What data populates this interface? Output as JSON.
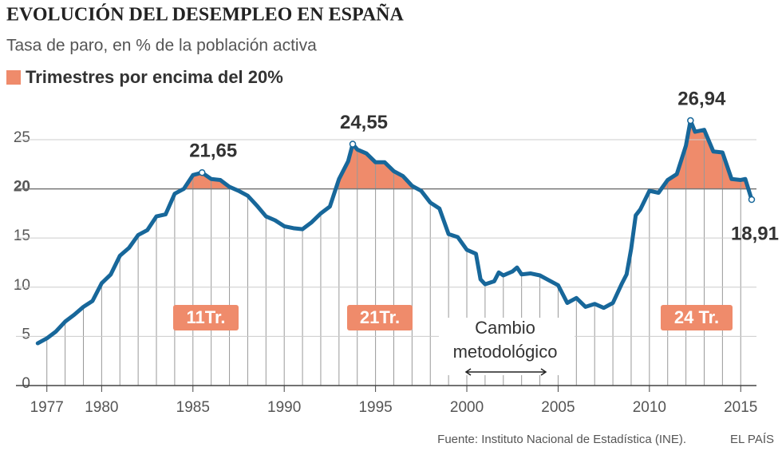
{
  "chart_data": {
    "type": "line",
    "title": "EVOLUCIÓN DEL DESEMPLEO EN ESPAÑA",
    "subtitle": "Tasa de paro, en % de la población activa",
    "legend": "Trimestres por encima del 20%",
    "threshold": 20,
    "threshold_color": "#ef8b6b",
    "x": [
      1976.5,
      1977,
      1977.5,
      1978,
      1978.5,
      1979,
      1979.5,
      1980,
      1980.5,
      1981,
      1981.5,
      1982,
      1982.5,
      1983,
      1983.5,
      1984,
      1984.5,
      1985,
      1985.5,
      1986,
      1986.5,
      1987,
      1987.5,
      1988,
      1988.5,
      1989,
      1989.5,
      1990,
      1990.5,
      1991,
      1991.5,
      1992,
      1992.5,
      1993,
      1993.5,
      1993.75,
      1994,
      1994.5,
      1995,
      1995.5,
      1996,
      1996.5,
      1997,
      1997.5,
      1998,
      1998.5,
      1999,
      1999.5,
      2000,
      2000.5,
      2000.75,
      2001,
      2001.5,
      2001.75,
      2002,
      2002.5,
      2002.75,
      2003,
      2003.5,
      2004,
      2004.5,
      2005,
      2005.25,
      2005.5,
      2006,
      2006.5,
      2007,
      2007.5,
      2008,
      2008.5,
      2008.75,
      2009,
      2009.25,
      2009.5,
      2010,
      2010.5,
      2011,
      2011.5,
      2012,
      2012.25,
      2012.5,
      2013,
      2013.5,
      2014,
      2014.5,
      2015,
      2015.25,
      2015.6
    ],
    "series": [
      {
        "name": "Tasa de paro",
        "color": "#17679a",
        "values": [
          4.3,
          4.8,
          5.5,
          6.5,
          7.2,
          8.0,
          8.6,
          10.4,
          11.3,
          13.2,
          14.0,
          15.3,
          15.8,
          17.2,
          17.4,
          19.5,
          20.0,
          21.4,
          21.65,
          21.0,
          20.9,
          20.2,
          19.8,
          19.3,
          18.3,
          17.2,
          16.8,
          16.2,
          16.0,
          15.9,
          16.6,
          17.5,
          18.2,
          21.0,
          22.8,
          24.55,
          24.0,
          23.6,
          22.7,
          22.7,
          21.8,
          21.3,
          20.3,
          19.8,
          18.6,
          18.0,
          15.4,
          15.1,
          13.8,
          13.4,
          10.8,
          10.3,
          10.6,
          11.5,
          11.2,
          11.6,
          12.0,
          11.3,
          11.4,
          11.2,
          10.7,
          10.2,
          9.3,
          8.4,
          8.9,
          8.0,
          8.3,
          7.9,
          8.4,
          10.4,
          11.3,
          13.9,
          17.3,
          17.9,
          19.8,
          19.6,
          20.9,
          21.5,
          24.4,
          26.94,
          25.8,
          26.0,
          23.8,
          23.7,
          21.0,
          20.9,
          21.0,
          18.91
        ]
      }
    ],
    "xlim": [
      1976.4,
      2016.3
    ],
    "xticks": [
      1977,
      1980,
      1985,
      1990,
      1995,
      2000,
      2005,
      2010,
      2015
    ],
    "ylim": [
      0,
      28
    ],
    "yticks": [
      0,
      5,
      10,
      15,
      20,
      25
    ],
    "grid": true,
    "annotations": [
      {
        "x": 1985.5,
        "y": 21.65,
        "label": "21,65"
      },
      {
        "x": 1993.75,
        "y": 24.55,
        "label": "24,55"
      },
      {
        "x": 2012.25,
        "y": 26.94,
        "label": "26,94"
      },
      {
        "x": 2015.6,
        "y": 18.91,
        "label": "18,91"
      }
    ],
    "period_labels": [
      "11Tr.",
      "21Tr.",
      "24 Tr."
    ],
    "note": [
      "Cambio",
      "metodológico"
    ],
    "source": "Fuente: Instituto Nacional de Estadística (INE).",
    "brand": "EL PAÍS"
  }
}
